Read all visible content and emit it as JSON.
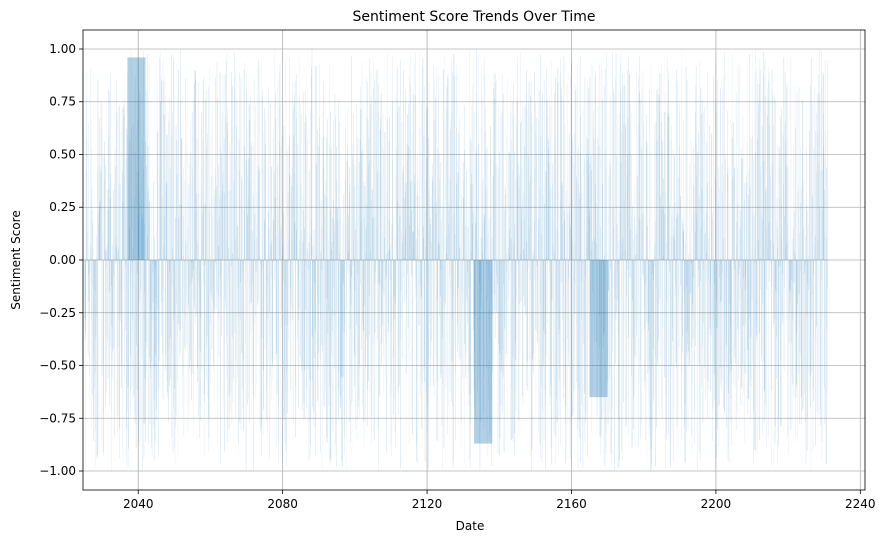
{
  "chart_data": {
    "type": "bar",
    "title": "Sentiment Score Trends Over Time",
    "xlabel": "Date",
    "ylabel": "Sentiment Score",
    "xlim": [
      2024.7,
      2241.3
    ],
    "ylim": [
      -1.09,
      1.09
    ],
    "x_ticks": [
      2040,
      2080,
      2120,
      2160,
      2200,
      2240
    ],
    "y_ticks": [
      -1.0,
      -0.75,
      -0.5,
      -0.25,
      0.0,
      0.25,
      0.5,
      0.75,
      1.0
    ],
    "y_tick_labels": [
      "−1.00",
      "−0.75",
      "−0.50",
      "−0.25",
      "0.00",
      "0.25",
      "0.50",
      "0.75",
      "1.00"
    ],
    "grid": true,
    "series_color": "#1f77b4",
    "x_range": [
      2025.0,
      2231.0
    ],
    "value_range": [
      -1.0,
      1.0
    ],
    "highlighted_segments": [
      {
        "x": [
          2037.0,
          2039.0
        ],
        "value": 0.96
      },
      {
        "x": [
          2039.0,
          2042.0
        ],
        "value": 0.96
      },
      {
        "x": [
          2133.0,
          2135.0
        ],
        "value": -0.87
      },
      {
        "x": [
          2135.0,
          2138.0
        ],
        "value": -0.87
      },
      {
        "x": [
          2165.0,
          2170.0
        ],
        "value": -0.65
      }
    ]
  }
}
